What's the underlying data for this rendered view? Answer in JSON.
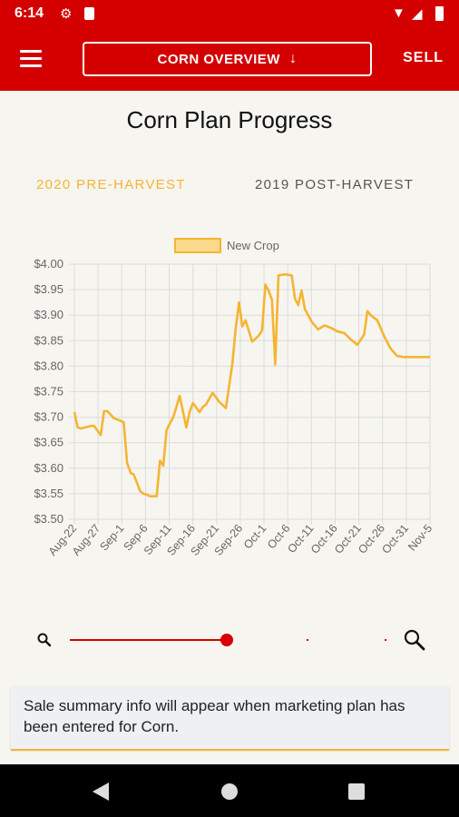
{
  "status": {
    "time": "6:14"
  },
  "appbar": {
    "title": "CORN OVERVIEW",
    "title_arrow": "↓",
    "sell": "SELL"
  },
  "page": {
    "title": "Corn Plan Progress"
  },
  "tabs": [
    {
      "label": "2020 PRE-HARVEST",
      "active": true
    },
    {
      "label": "2019 POST-HARVEST",
      "active": false
    }
  ],
  "chart_data": {
    "type": "line",
    "legend": [
      "New Crop"
    ],
    "ylim": [
      3.5,
      4.0
    ],
    "yticks": [
      "$4.00",
      "$3.95",
      "$3.90",
      "$3.85",
      "$3.80",
      "$3.75",
      "$3.70",
      "$3.65",
      "$3.60",
      "$3.55",
      "$3.50"
    ],
    "xticks": [
      "Aug-22",
      "Aug-27",
      "Sep-1",
      "Sep-6",
      "Sep-11",
      "Sep-16",
      "Sep-21",
      "Sep-26",
      "Oct-1",
      "Oct-6",
      "Oct-11",
      "Oct-16",
      "Oct-21",
      "Oct-26",
      "Oct-31",
      "Nov-5"
    ],
    "colors": {
      "line": "#f5b531",
      "fill": "#fbd98a"
    },
    "series": [
      {
        "name": "New Crop",
        "x": [
          0,
          0.5,
          1,
          2.5,
          3,
          4,
          4.5,
          5,
          6,
          7,
          7.5,
          8,
          8.6,
          9,
          10,
          10.5,
          11,
          11.5,
          12.5,
          13,
          13.5,
          14,
          15,
          15.5,
          16,
          17,
          17.5,
          18,
          19,
          19.5,
          20,
          21,
          22,
          23,
          24,
          24.5,
          25,
          25.5,
          26,
          27,
          28,
          28.5,
          29,
          29.5,
          30,
          30.5,
          31,
          32,
          33,
          33.5,
          34,
          34.5,
          35,
          35.5,
          36,
          37,
          38,
          39,
          40,
          41,
          42,
          43,
          44,
          44.5,
          45,
          46,
          47,
          48,
          49,
          50,
          51,
          52,
          53,
          54
        ],
        "y": [
          3.71,
          3.68,
          3.678,
          3.683,
          3.683,
          3.665,
          3.712,
          3.712,
          3.698,
          3.693,
          3.69,
          3.61,
          3.59,
          3.588,
          3.555,
          3.55,
          3.548,
          3.545,
          3.545,
          3.615,
          3.605,
          3.675,
          3.7,
          3.72,
          3.742,
          3.68,
          3.71,
          3.728,
          3.71,
          3.72,
          3.725,
          3.748,
          3.73,
          3.718,
          3.805,
          3.875,
          3.925,
          3.878,
          3.89,
          3.848,
          3.86,
          3.87,
          3.96,
          3.948,
          3.93,
          3.803,
          3.978,
          3.98,
          3.978,
          3.932,
          3.92,
          3.948,
          3.912,
          3.9,
          3.888,
          3.872,
          3.88,
          3.875,
          3.868,
          3.865,
          3.852,
          3.842,
          3.862,
          3.908,
          3.9,
          3.89,
          3.86,
          3.835,
          3.82,
          3.818,
          3.818,
          3.818,
          3.818,
          3.818
        ]
      }
    ]
  },
  "summary": {
    "text": "Sale summary info will appear when marketing plan has been entered for Corn."
  }
}
